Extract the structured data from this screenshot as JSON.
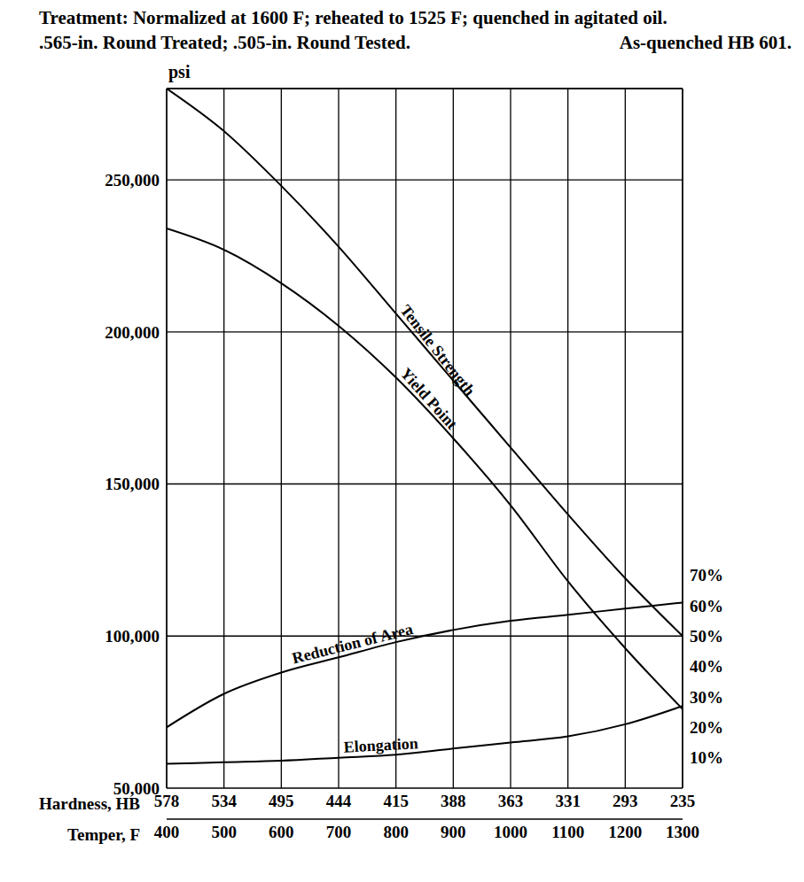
{
  "chart_data": {
    "type": "line",
    "title": "Treatment: Normalized at 1600 F; reheated to 1525 F; quenched in agitated oil.",
    "subtitle": ".565-in. Round Treated; .505-in. Round Tested.",
    "annotations": [
      "As-quenched HB 601."
    ],
    "ylabel": "psi",
    "xlabel": "Temper, F",
    "x": [
      400,
      500,
      600,
      700,
      800,
      900,
      1000,
      1100,
      1200,
      1300
    ],
    "xlim": [
      400,
      1300
    ],
    "xticks": [
      400,
      500,
      600,
      700,
      800,
      900,
      1000,
      1100,
      1200,
      1300
    ],
    "ylim": [
      50000,
      280000
    ],
    "yticks": [
      {
        "value": 50000,
        "label": "50,000"
      },
      {
        "value": 100000,
        "label": "100,000"
      },
      {
        "value": 150000,
        "label": "150,000"
      },
      {
        "value": 200000,
        "label": "200,000"
      },
      {
        "value": 250000,
        "label": "250,000"
      }
    ],
    "y2lim": [
      0,
      230
    ],
    "y2ticks": [
      {
        "value": 10,
        "label": "10%"
      },
      {
        "value": 20,
        "label": "20%"
      },
      {
        "value": 30,
        "label": "30%"
      },
      {
        "value": 40,
        "label": "40%"
      },
      {
        "value": 50,
        "label": "50%"
      },
      {
        "value": 60,
        "label": "60%"
      },
      {
        "value": 70,
        "label": "70%"
      }
    ],
    "grid": true,
    "hardness": {
      "label": "Hardness, HB",
      "values": [
        578,
        534,
        495,
        444,
        415,
        388,
        363,
        331,
        293,
        235
      ]
    },
    "series": [
      {
        "name": "Tensile Strength",
        "color": "#000000",
        "values": [
          280000,
          266000,
          248000,
          228000,
          206000,
          184000,
          162000,
          140000,
          119000,
          100000
        ]
      },
      {
        "name": "Yield Point",
        "color": "#000000",
        "values": [
          234000,
          227000,
          216000,
          202000,
          185000,
          165000,
          143000,
          118000,
          96000,
          76000
        ]
      },
      {
        "name": "Reduction of Area",
        "color": "#000000",
        "axis": "y2",
        "values": [
          20,
          31,
          38,
          43,
          48,
          52,
          55,
          57,
          59,
          61
        ]
      },
      {
        "name": "Elongation",
        "color": "#000000",
        "axis": "y2",
        "values": [
          8,
          8.5,
          9,
          10,
          11,
          13,
          15,
          17,
          21,
          27
        ]
      }
    ]
  }
}
